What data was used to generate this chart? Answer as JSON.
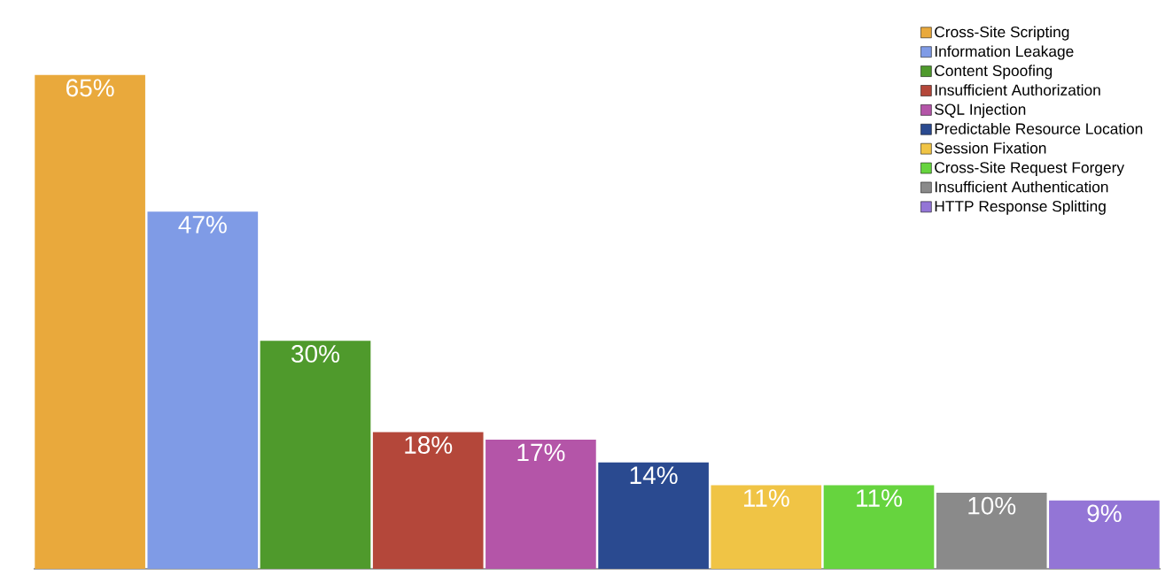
{
  "chart_data": {
    "type": "bar",
    "stacked": true,
    "categories": [
      null,
      null,
      null,
      null,
      null,
      null,
      null,
      null,
      null,
      null
    ],
    "legend": "top right",
    "series": [
      {
        "name": "Cross-Site Scripting",
        "color": "#e9a93c",
        "values": [
          65,
          null,
          null,
          null,
          null,
          null,
          null,
          null,
          null,
          null
        ],
        "value_labels": [
          "65%",
          null,
          null,
          null,
          null,
          null,
          null,
          null,
          null,
          null
        ]
      },
      {
        "name": "Information Leakage",
        "color": "#7f9be6",
        "values": [
          null,
          47,
          null,
          null,
          null,
          null,
          null,
          null,
          null,
          null
        ],
        "value_labels": [
          null,
          "47%",
          null,
          null,
          null,
          null,
          null,
          null,
          null,
          null
        ]
      },
      {
        "name": "Content Spoofing",
        "color": "#4f9a2c",
        "values": [
          null,
          null,
          30,
          null,
          null,
          null,
          null,
          null,
          null,
          null
        ],
        "value_labels": [
          null,
          null,
          "30%",
          null,
          null,
          null,
          null,
          null,
          null,
          null
        ]
      },
      {
        "name": "Insufficient Authorization",
        "color": "#b4473a",
        "values": [
          null,
          null,
          null,
          18,
          null,
          null,
          null,
          null,
          null,
          null
        ],
        "value_labels": [
          null,
          null,
          null,
          "18%",
          null,
          null,
          null,
          null,
          null,
          null
        ]
      },
      {
        "name": "SQL Injection",
        "color": "#b455a8",
        "values": [
          null,
          null,
          null,
          null,
          17,
          null,
          null,
          null,
          null,
          null
        ],
        "value_labels": [
          null,
          null,
          null,
          null,
          "17%",
          null,
          null,
          null,
          null,
          null
        ]
      },
      {
        "name": "Predictable Resource Location",
        "color": "#2a4a90",
        "values": [
          null,
          null,
          null,
          null,
          null,
          14,
          null,
          null,
          null,
          null
        ],
        "value_labels": [
          null,
          null,
          null,
          null,
          null,
          "14%",
          null,
          null,
          null,
          null
        ]
      },
      {
        "name": "Session Fixation",
        "color": "#f0c445",
        "values": [
          null,
          null,
          null,
          null,
          null,
          null,
          11,
          null,
          null,
          null
        ],
        "value_labels": [
          null,
          null,
          null,
          null,
          null,
          null,
          "11%",
          null,
          null,
          null
        ]
      },
      {
        "name": "Cross-Site Request Forgery",
        "color": "#66d43e",
        "values": [
          null,
          null,
          null,
          null,
          null,
          null,
          null,
          11,
          null,
          null
        ],
        "value_labels": [
          null,
          null,
          null,
          null,
          null,
          null,
          null,
          "11%",
          null,
          null
        ]
      },
      {
        "name": "Insufficient Authentication",
        "color": "#8a8a8a",
        "values": [
          null,
          null,
          null,
          null,
          null,
          null,
          null,
          null,
          10,
          null
        ],
        "value_labels": [
          null,
          null,
          null,
          null,
          null,
          null,
          null,
          null,
          "10%",
          null
        ]
      },
      {
        "name": "HTTP Response Splitting",
        "color": "#9375d6",
        "values": [
          null,
          null,
          null,
          null,
          null,
          null,
          null,
          null,
          null,
          9
        ],
        "value_labels": [
          null,
          null,
          null,
          null,
          null,
          null,
          null,
          null,
          null,
          "9%"
        ]
      }
    ]
  }
}
